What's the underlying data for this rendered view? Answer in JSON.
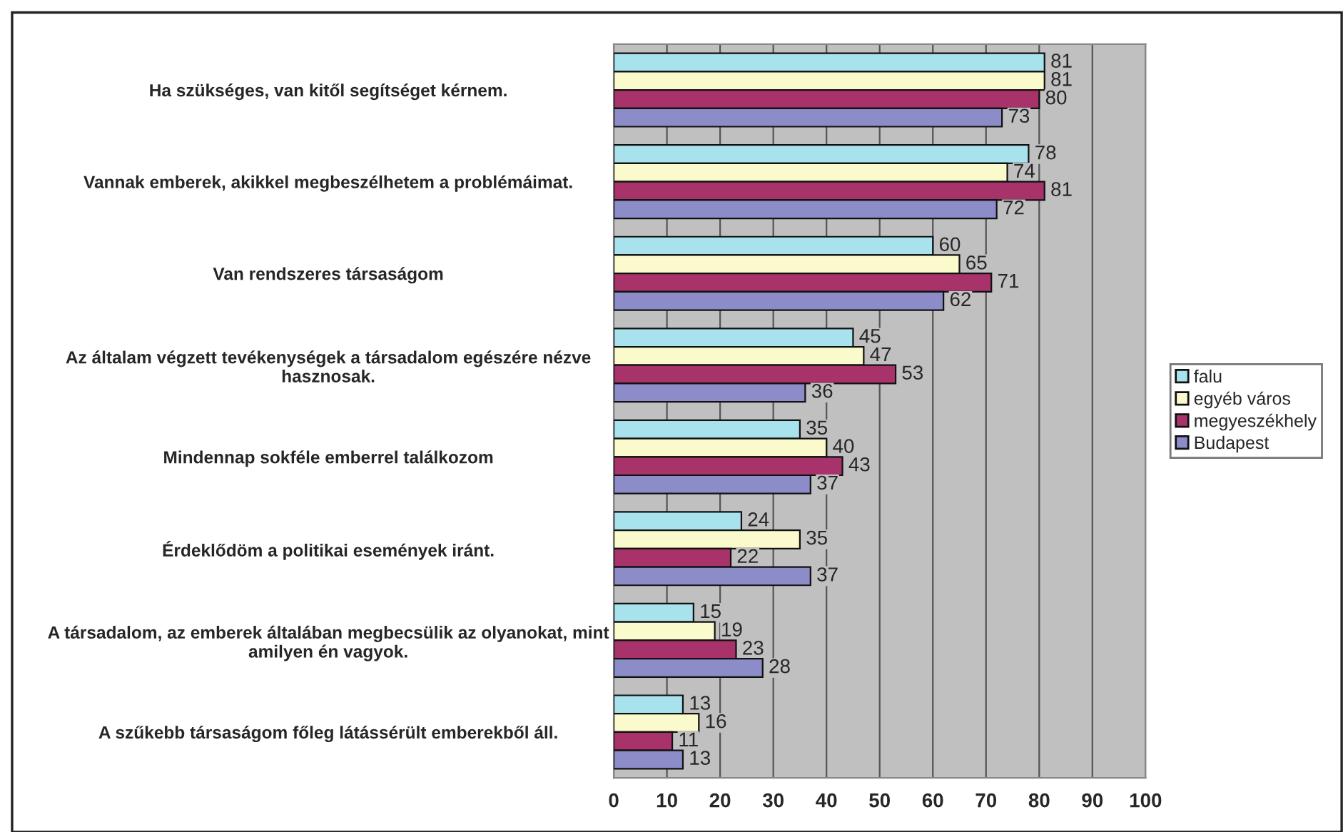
{
  "chart_data": {
    "type": "bar",
    "orientation": "horizontal",
    "categories": [
      "Ha szükséges, van kitől segítséget kérnem.",
      "Vannak emberek, akikkel megbeszélhetem a problémáimat.",
      "Van rendszeres társaságom",
      "Az általam végzett tevékenységek a társadalom egészére nézve\nhasznosak.",
      "Mindennap sokféle emberrel találkozom",
      "Érdeklődöm a politikai események iránt.",
      "A társadalom, az emberek általában megbecsülik az olyanokat, mint\namilyen én vagyok.",
      "A szűkebb társaságom főleg látássérült emberekből áll."
    ],
    "series": [
      {
        "name": "falu",
        "color": "#a8e2ec",
        "values": [
          81,
          78,
          60,
          45,
          35,
          24,
          15,
          13
        ]
      },
      {
        "name": "egyéb város",
        "color": "#fafacc",
        "values": [
          81,
          74,
          65,
          47,
          40,
          35,
          19,
          16
        ]
      },
      {
        "name": "megyeszékhely",
        "color": "#a8336a",
        "values": [
          80,
          81,
          71,
          53,
          43,
          22,
          23,
          11
        ]
      },
      {
        "name": "Budapest",
        "color": "#8c8cc8",
        "values": [
          73,
          72,
          62,
          36,
          37,
          37,
          28,
          13
        ]
      }
    ],
    "xlim": [
      0,
      100
    ],
    "xticks": [
      0,
      10,
      20,
      30,
      40,
      50,
      60,
      70,
      80,
      90,
      100
    ],
    "grid": "x",
    "legend": "right",
    "data_labels": true
  }
}
